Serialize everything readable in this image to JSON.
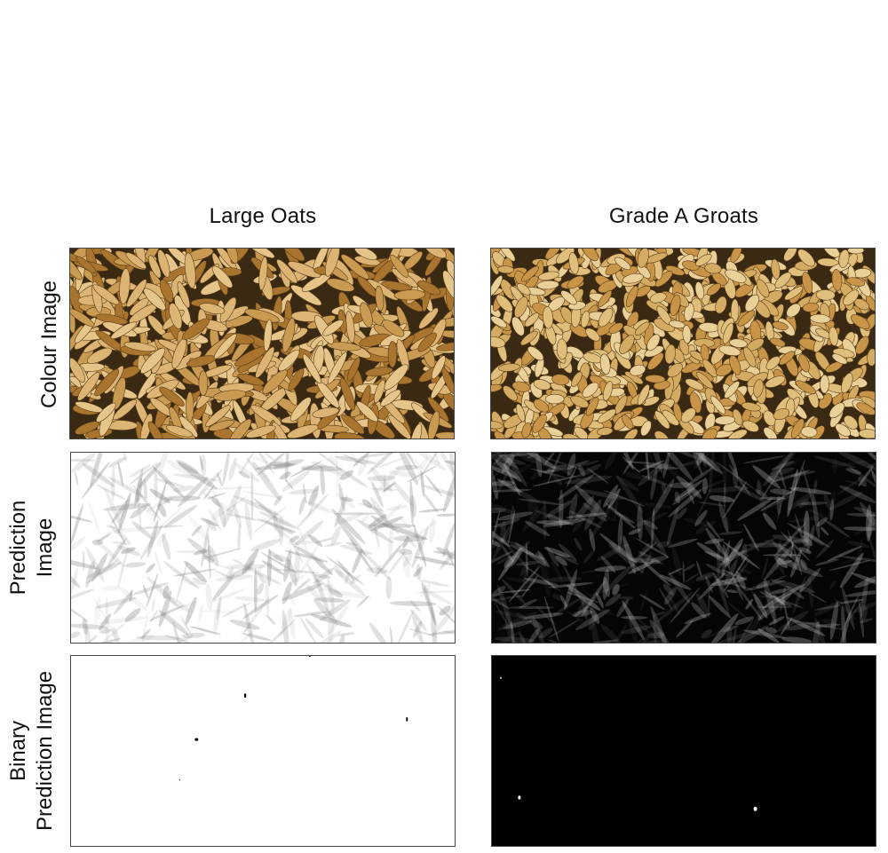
{
  "columns": [
    {
      "title": "Large Oats"
    },
    {
      "title": "Grade A Groats"
    }
  ],
  "rows": [
    {
      "label_lines": [
        "Colour Image"
      ]
    },
    {
      "label_lines": [
        "Prediction",
        "Image"
      ]
    },
    {
      "label_lines": [
        "Binary",
        "Prediction Image"
      ]
    }
  ],
  "colors": {
    "grain_background": "#3a2a14",
    "oat_light": "#e6c58a",
    "oat_mid": "#c99a52",
    "oat_dark": "#a8742e",
    "groat_light": "#e9cf98",
    "groat_mid": "#d4ab62",
    "prediction_left_bg": "#ffffff",
    "prediction_right_bg": "#050505",
    "binary_left_bg": "#ffffff",
    "binary_right_bg": "#000000"
  }
}
